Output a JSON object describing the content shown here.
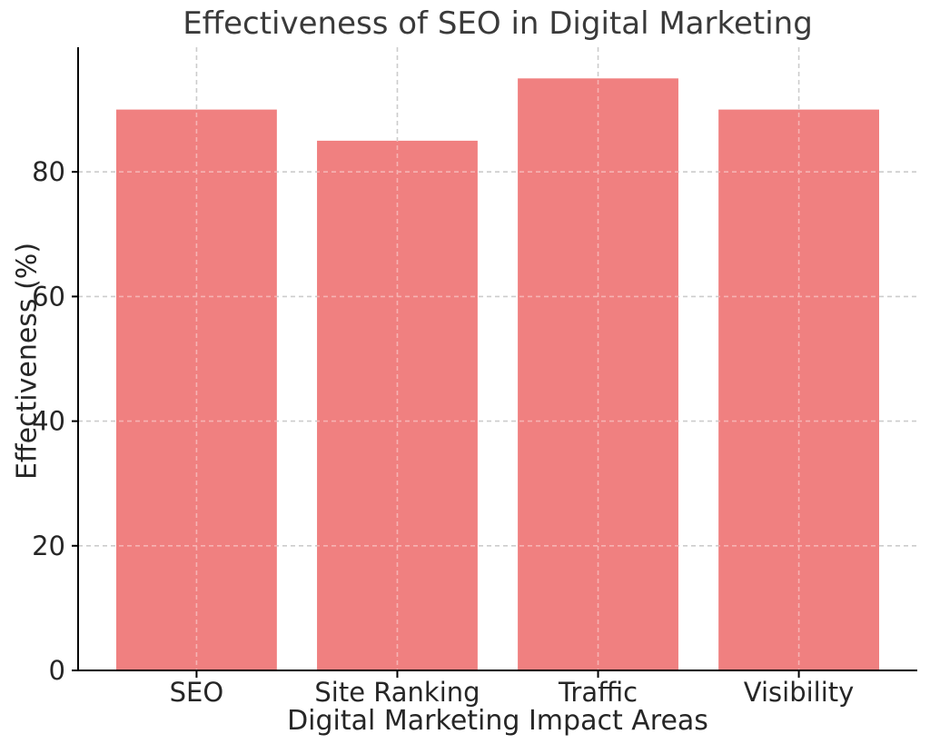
{
  "chart_data": {
    "type": "bar",
    "title": "Effectiveness of SEO in Digital Marketing",
    "xlabel": "Digital Marketing Impact Areas",
    "ylabel": "Effectiveness (%)",
    "categories": [
      "SEO",
      "Site Ranking",
      "Traffic",
      "Visibility"
    ],
    "values": [
      90,
      85,
      95,
      90
    ],
    "yticks": [
      0,
      20,
      40,
      60,
      80
    ],
    "ylim": [
      0,
      100
    ],
    "bar_color": "#F08080",
    "grid": true,
    "grid_style": "dashed",
    "grid_color": "#CCCCCC",
    "axis_color": "#000000",
    "text_color": "#262626",
    "title_color": "#3A3A3A",
    "background": "#FFFFFF",
    "legend": null
  }
}
